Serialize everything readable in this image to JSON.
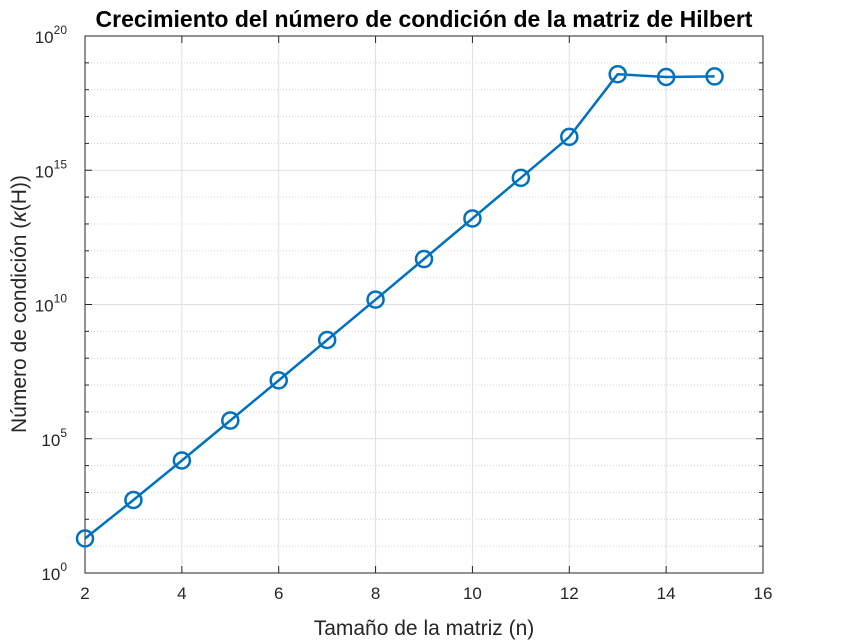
{
  "chart_data": {
    "type": "line",
    "title": "Crecimiento del número de condición de la matriz de Hilbert",
    "xlabel": "Tamaño de la matriz (n)",
    "ylabel_prefix": "Número de condición (",
    "ylabel_symbol": "κ",
    "ylabel_suffix": "(H))",
    "xlim": [
      2,
      16
    ],
    "ylim": [
      1,
      1e+20
    ],
    "yscale": "log",
    "grid": true,
    "x_ticks": [
      "2",
      "4",
      "6",
      "8",
      "10",
      "12",
      "14",
      "16"
    ],
    "y_ticks": [
      {
        "base": "10",
        "exp": "0"
      },
      {
        "base": "10",
        "exp": "5"
      },
      {
        "base": "10",
        "exp": "10"
      },
      {
        "base": "10",
        "exp": "15"
      },
      {
        "base": "10",
        "exp": "20"
      }
    ],
    "series": [
      {
        "color": "#0072bd",
        "marker": "circle",
        "x": [
          2,
          3,
          4,
          5,
          6,
          7,
          8,
          9,
          10,
          11,
          12,
          13,
          14,
          15
        ],
        "y": [
          19.28,
          524.06,
          15514,
          476610,
          14951000,
          475370000,
          15258000000,
          493150000000,
          16025000000000,
          522270000000000,
          17515000000000000,
          3.77e+18,
          2.97e+18,
          3.12e+18
        ]
      }
    ]
  }
}
